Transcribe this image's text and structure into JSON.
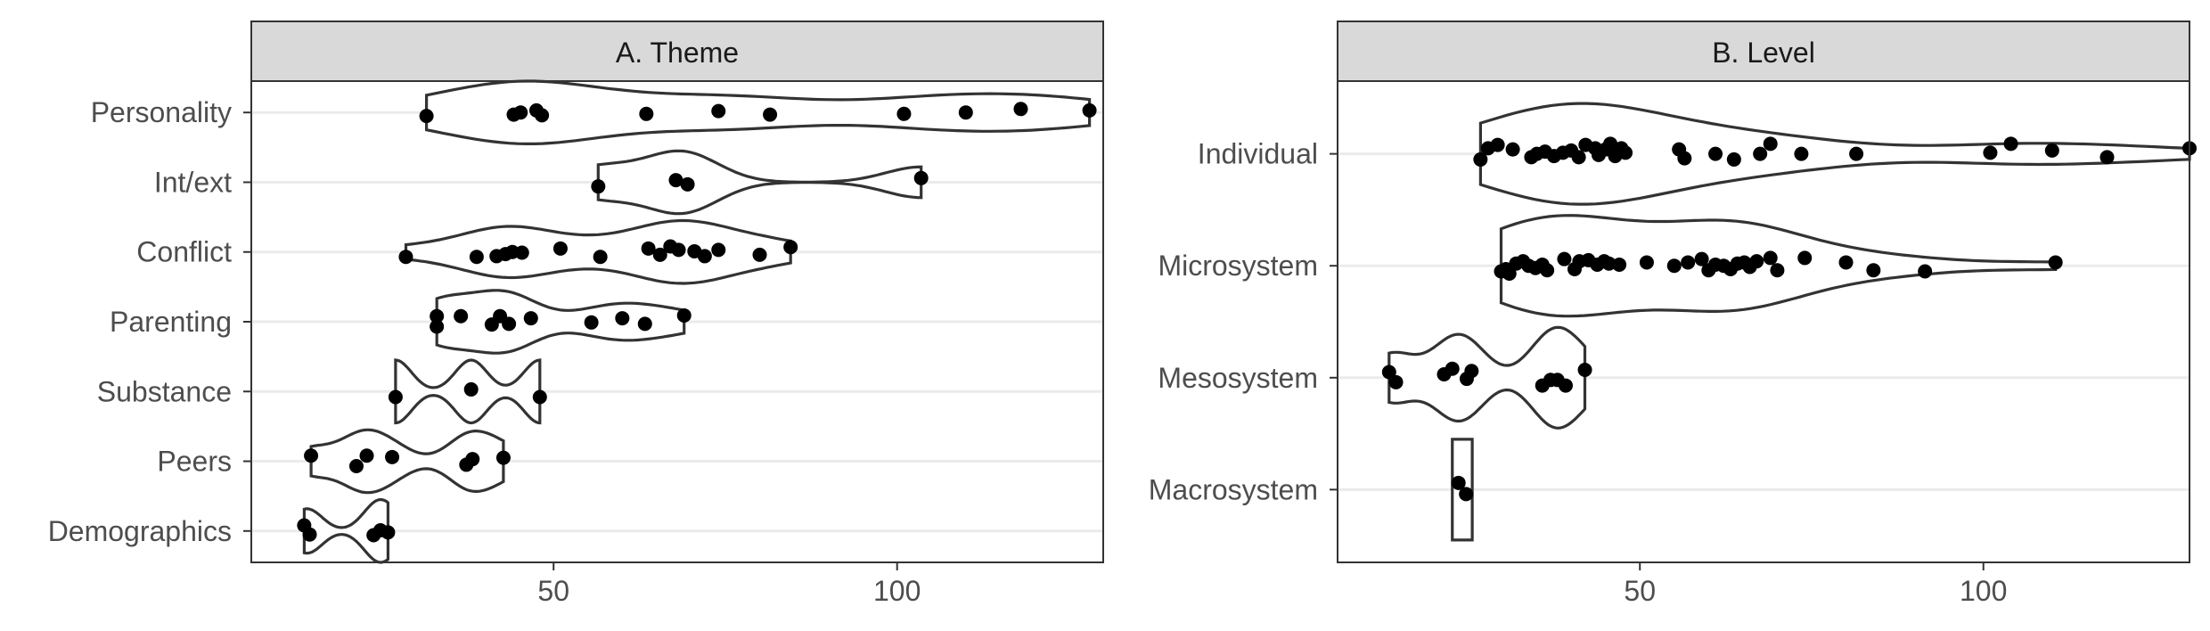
{
  "chart_data": [
    {
      "type": "violin",
      "title": "A. Theme",
      "xlabel": "",
      "ylabel": "",
      "xlim": [
        6,
        130
      ],
      "xticks": [
        50,
        100
      ],
      "grid": true,
      "categories": [
        "Personality",
        "Int/ext",
        "Conflict",
        "Parenting",
        "Substance",
        "Peers",
        "Demographics"
      ],
      "groups": [
        {
          "name": "Personality",
          "points": [
            {
              "x": 31.5,
              "y": -0.05
            },
            {
              "x": 44.2,
              "y": -0.03
            },
            {
              "x": 45.2,
              "y": 0.0
            },
            {
              "x": 47.5,
              "y": 0.03
            },
            {
              "x": 48.3,
              "y": -0.04
            },
            {
              "x": 63.5,
              "y": -0.02
            },
            {
              "x": 74.0,
              "y": 0.02
            },
            {
              "x": 81.5,
              "y": -0.03
            },
            {
              "x": 101.0,
              "y": -0.02
            },
            {
              "x": 110.0,
              "y": 0.0
            },
            {
              "x": 118.0,
              "y": 0.05
            },
            {
              "x": 128.0,
              "y": 0.03
            }
          ]
        },
        {
          "name": "Int/ext",
          "points": [
            {
              "x": 56.5,
              "y": -0.06
            },
            {
              "x": 67.8,
              "y": 0.03
            },
            {
              "x": 69.5,
              "y": -0.03
            },
            {
              "x": 103.5,
              "y": 0.06
            }
          ]
        },
        {
          "name": "Conflict",
          "points": [
            {
              "x": 28.5,
              "y": -0.07
            },
            {
              "x": 38.8,
              "y": -0.07
            },
            {
              "x": 41.7,
              "y": -0.06
            },
            {
              "x": 43.0,
              "y": -0.03
            },
            {
              "x": 44.0,
              "y": 0.0
            },
            {
              "x": 45.4,
              "y": -0.01
            },
            {
              "x": 51.0,
              "y": 0.05
            },
            {
              "x": 56.8,
              "y": -0.07
            },
            {
              "x": 63.8,
              "y": 0.05
            },
            {
              "x": 65.5,
              "y": -0.04
            },
            {
              "x": 67.0,
              "y": 0.08
            },
            {
              "x": 68.2,
              "y": 0.03
            },
            {
              "x": 70.5,
              "y": 0.01
            },
            {
              "x": 72.0,
              "y": -0.06
            },
            {
              "x": 74.0,
              "y": 0.03
            },
            {
              "x": 80.0,
              "y": -0.04
            },
            {
              "x": 84.5,
              "y": 0.07
            }
          ]
        },
        {
          "name": "Parenting",
          "points": [
            {
              "x": 33.0,
              "y": 0.08
            },
            {
              "x": 33.0,
              "y": -0.07
            },
            {
              "x": 36.5,
              "y": 0.08
            },
            {
              "x": 41.0,
              "y": -0.04
            },
            {
              "x": 42.2,
              "y": 0.08
            },
            {
              "x": 43.5,
              "y": -0.03
            },
            {
              "x": 46.7,
              "y": 0.05
            },
            {
              "x": 55.5,
              "y": -0.01
            },
            {
              "x": 60.0,
              "y": 0.05
            },
            {
              "x": 63.3,
              "y": -0.03
            },
            {
              "x": 69.0,
              "y": 0.09
            }
          ]
        },
        {
          "name": "Substance",
          "points": [
            {
              "x": 27.0,
              "y": -0.08
            },
            {
              "x": 38.0,
              "y": 0.03
            },
            {
              "x": 48.0,
              "y": -0.08
            }
          ]
        },
        {
          "name": "Peers",
          "points": [
            {
              "x": 14.7,
              "y": 0.08
            },
            {
              "x": 21.3,
              "y": -0.07
            },
            {
              "x": 22.8,
              "y": 0.08
            },
            {
              "x": 26.5,
              "y": 0.06
            },
            {
              "x": 37.3,
              "y": -0.05
            },
            {
              "x": 38.2,
              "y": 0.03
            },
            {
              "x": 42.7,
              "y": 0.05
            }
          ]
        },
        {
          "name": "Demographics",
          "points": [
            {
              "x": 13.7,
              "y": 0.08
            },
            {
              "x": 14.5,
              "y": -0.05
            },
            {
              "x": 23.8,
              "y": -0.06
            },
            {
              "x": 24.8,
              "y": 0.01
            },
            {
              "x": 25.9,
              "y": -0.02
            }
          ]
        }
      ]
    },
    {
      "type": "violin",
      "title": "B. Level",
      "xlabel": "",
      "ylabel": "",
      "xlim": [
        6,
        130
      ],
      "xticks": [
        50,
        100
      ],
      "grid": true,
      "categories": [
        "Individual",
        "Microsystem",
        "Mesosystem",
        "Macrosystem"
      ],
      "groups": [
        {
          "name": "Individual",
          "points": [
            {
              "x": 26.8,
              "y": -0.05
            },
            {
              "x": 27.9,
              "y": 0.05
            },
            {
              "x": 29.3,
              "y": 0.08
            },
            {
              "x": 31.5,
              "y": 0.04
            },
            {
              "x": 34.2,
              "y": -0.03
            },
            {
              "x": 35.0,
              "y": 0.0
            },
            {
              "x": 36.2,
              "y": 0.02
            },
            {
              "x": 37.5,
              "y": -0.02
            },
            {
              "x": 38.8,
              "y": 0.01
            },
            {
              "x": 40.0,
              "y": 0.03
            },
            {
              "x": 41.1,
              "y": -0.03
            },
            {
              "x": 42.1,
              "y": 0.08
            },
            {
              "x": 43.5,
              "y": 0.05
            },
            {
              "x": 44.0,
              "y": -0.01
            },
            {
              "x": 45.0,
              "y": 0.04
            },
            {
              "x": 45.7,
              "y": 0.09
            },
            {
              "x": 46.4,
              "y": -0.02
            },
            {
              "x": 47.3,
              "y": 0.05
            },
            {
              "x": 47.9,
              "y": 0.01
            },
            {
              "x": 55.7,
              "y": 0.04
            },
            {
              "x": 56.5,
              "y": -0.04
            },
            {
              "x": 61.0,
              "y": 0.0
            },
            {
              "x": 63.7,
              "y": -0.05
            },
            {
              "x": 67.5,
              "y": 0.0
            },
            {
              "x": 69.0,
              "y": 0.09
            },
            {
              "x": 73.5,
              "y": 0.0
            },
            {
              "x": 81.5,
              "y": 0.0
            },
            {
              "x": 101.0,
              "y": 0.01
            },
            {
              "x": 104.0,
              "y": 0.09
            },
            {
              "x": 110.0,
              "y": 0.03
            },
            {
              "x": 118.0,
              "y": -0.03
            },
            {
              "x": 130.0,
              "y": 0.05
            }
          ]
        },
        {
          "name": "Microsystem",
          "points": [
            {
              "x": 29.8,
              "y": -0.05
            },
            {
              "x": 30.5,
              "y": -0.03
            },
            {
              "x": 31.0,
              "y": -0.07
            },
            {
              "x": 32.0,
              "y": 0.02
            },
            {
              "x": 33.0,
              "y": 0.04
            },
            {
              "x": 33.8,
              "y": 0.0
            },
            {
              "x": 34.8,
              "y": -0.02
            },
            {
              "x": 35.8,
              "y": 0.01
            },
            {
              "x": 36.5,
              "y": -0.04
            },
            {
              "x": 39.0,
              "y": 0.06
            },
            {
              "x": 40.5,
              "y": -0.03
            },
            {
              "x": 41.2,
              "y": 0.04
            },
            {
              "x": 42.5,
              "y": 0.05
            },
            {
              "x": 43.8,
              "y": 0.01
            },
            {
              "x": 44.8,
              "y": 0.04
            },
            {
              "x": 45.5,
              "y": 0.02
            },
            {
              "x": 47.0,
              "y": 0.01
            },
            {
              "x": 51.0,
              "y": 0.03
            },
            {
              "x": 55.0,
              "y": 0.0
            },
            {
              "x": 57.0,
              "y": 0.03
            },
            {
              "x": 59.0,
              "y": 0.06
            },
            {
              "x": 60.0,
              "y": -0.04
            },
            {
              "x": 61.0,
              "y": 0.01
            },
            {
              "x": 62.2,
              "y": 0.0
            },
            {
              "x": 63.2,
              "y": -0.03
            },
            {
              "x": 64.2,
              "y": 0.02
            },
            {
              "x": 65.2,
              "y": 0.03
            },
            {
              "x": 66.0,
              "y": -0.01
            },
            {
              "x": 67.0,
              "y": 0.04
            },
            {
              "x": 69.0,
              "y": 0.07
            },
            {
              "x": 70.0,
              "y": -0.04
            },
            {
              "x": 74.0,
              "y": 0.07
            },
            {
              "x": 80.0,
              "y": 0.03
            },
            {
              "x": 84.0,
              "y": -0.04
            },
            {
              "x": 91.5,
              "y": -0.05
            },
            {
              "x": 110.5,
              "y": 0.03
            }
          ]
        },
        {
          "name": "Mesosystem",
          "points": [
            {
              "x": 13.5,
              "y": 0.05
            },
            {
              "x": 14.5,
              "y": -0.04
            },
            {
              "x": 21.5,
              "y": 0.03
            },
            {
              "x": 22.7,
              "y": 0.08
            },
            {
              "x": 24.8,
              "y": -0.01
            },
            {
              "x": 25.5,
              "y": 0.06
            },
            {
              "x": 35.8,
              "y": -0.07
            },
            {
              "x": 37.0,
              "y": -0.02
            },
            {
              "x": 38.0,
              "y": -0.02
            },
            {
              "x": 39.2,
              "y": -0.07
            },
            {
              "x": 42.0,
              "y": 0.07
            }
          ]
        },
        {
          "name": "Macrosystem",
          "points": [
            {
              "x": 23.6,
              "y": 0.06
            },
            {
              "x": 24.7,
              "y": -0.04
            }
          ]
        }
      ]
    }
  ]
}
